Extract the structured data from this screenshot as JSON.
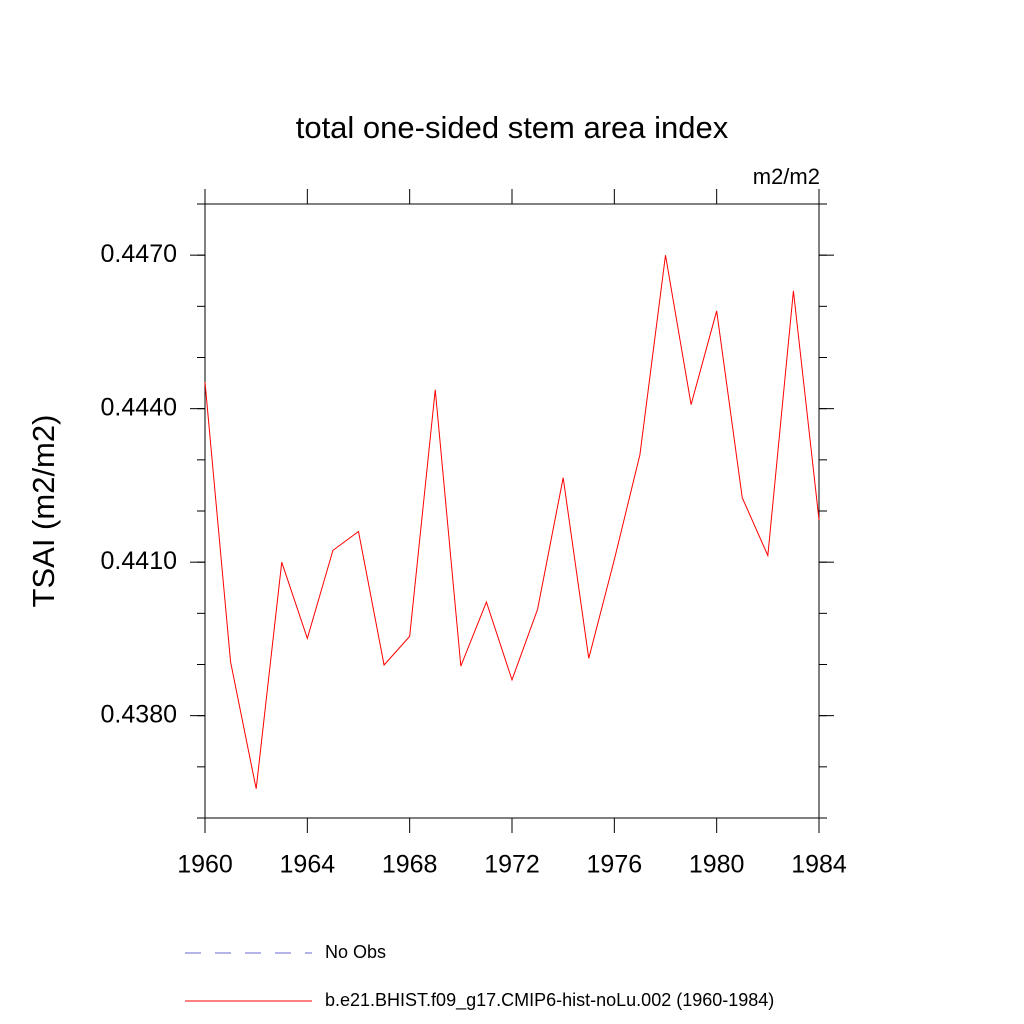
{
  "chart_data": {
    "type": "line",
    "title": "total one-sided stem area index",
    "units": "m2/m2",
    "y_label": "TSAI  (m2/m2)",
    "x": [
      1960,
      1961,
      1962,
      1963,
      1964,
      1965,
      1966,
      1967,
      1968,
      1969,
      1970,
      1971,
      1972,
      1973,
      1974,
      1975,
      1976,
      1977,
      1978,
      1979,
      1980,
      1981,
      1982,
      1983,
      1984
    ],
    "series": [
      {
        "name": "No Obs",
        "color": "#6a6ad0",
        "dashed": true,
        "values": [
          null,
          null,
          null,
          null,
          null,
          null,
          null,
          null,
          null,
          null,
          null,
          null,
          null,
          null,
          null,
          null,
          null,
          null,
          null,
          null,
          null,
          null,
          null,
          null,
          null
        ]
      },
      {
        "name": "b.e21.BHIST.f09_g17.CMIP6-hist-noLu.002 (1960-1984)",
        "color": "#ff0000",
        "dashed": false,
        "values": [
          0.44452,
          0.43905,
          0.43657,
          0.441,
          0.43951,
          0.44123,
          0.4416,
          0.43899,
          0.43955,
          0.44437,
          0.43897,
          0.44022,
          0.4387,
          0.44008,
          0.44265,
          0.43912,
          0.44105,
          0.4431,
          0.447,
          0.44408,
          0.44591,
          0.44226,
          0.44113,
          0.4463,
          0.44183
        ]
      }
    ],
    "xlim": [
      1960,
      1984
    ],
    "xticks": [
      1960,
      1964,
      1968,
      1972,
      1976,
      1980,
      1984
    ],
    "ylim": [
      0.436,
      0.448
    ],
    "yticks": [
      {
        "value": 0.438,
        "label": "0.4380"
      },
      {
        "value": 0.441,
        "label": "0.4410"
      },
      {
        "value": 0.444,
        "label": "0.4440"
      },
      {
        "value": 0.447,
        "label": "0.4470"
      }
    ],
    "yminor_step": 0.001,
    "grid": false
  }
}
